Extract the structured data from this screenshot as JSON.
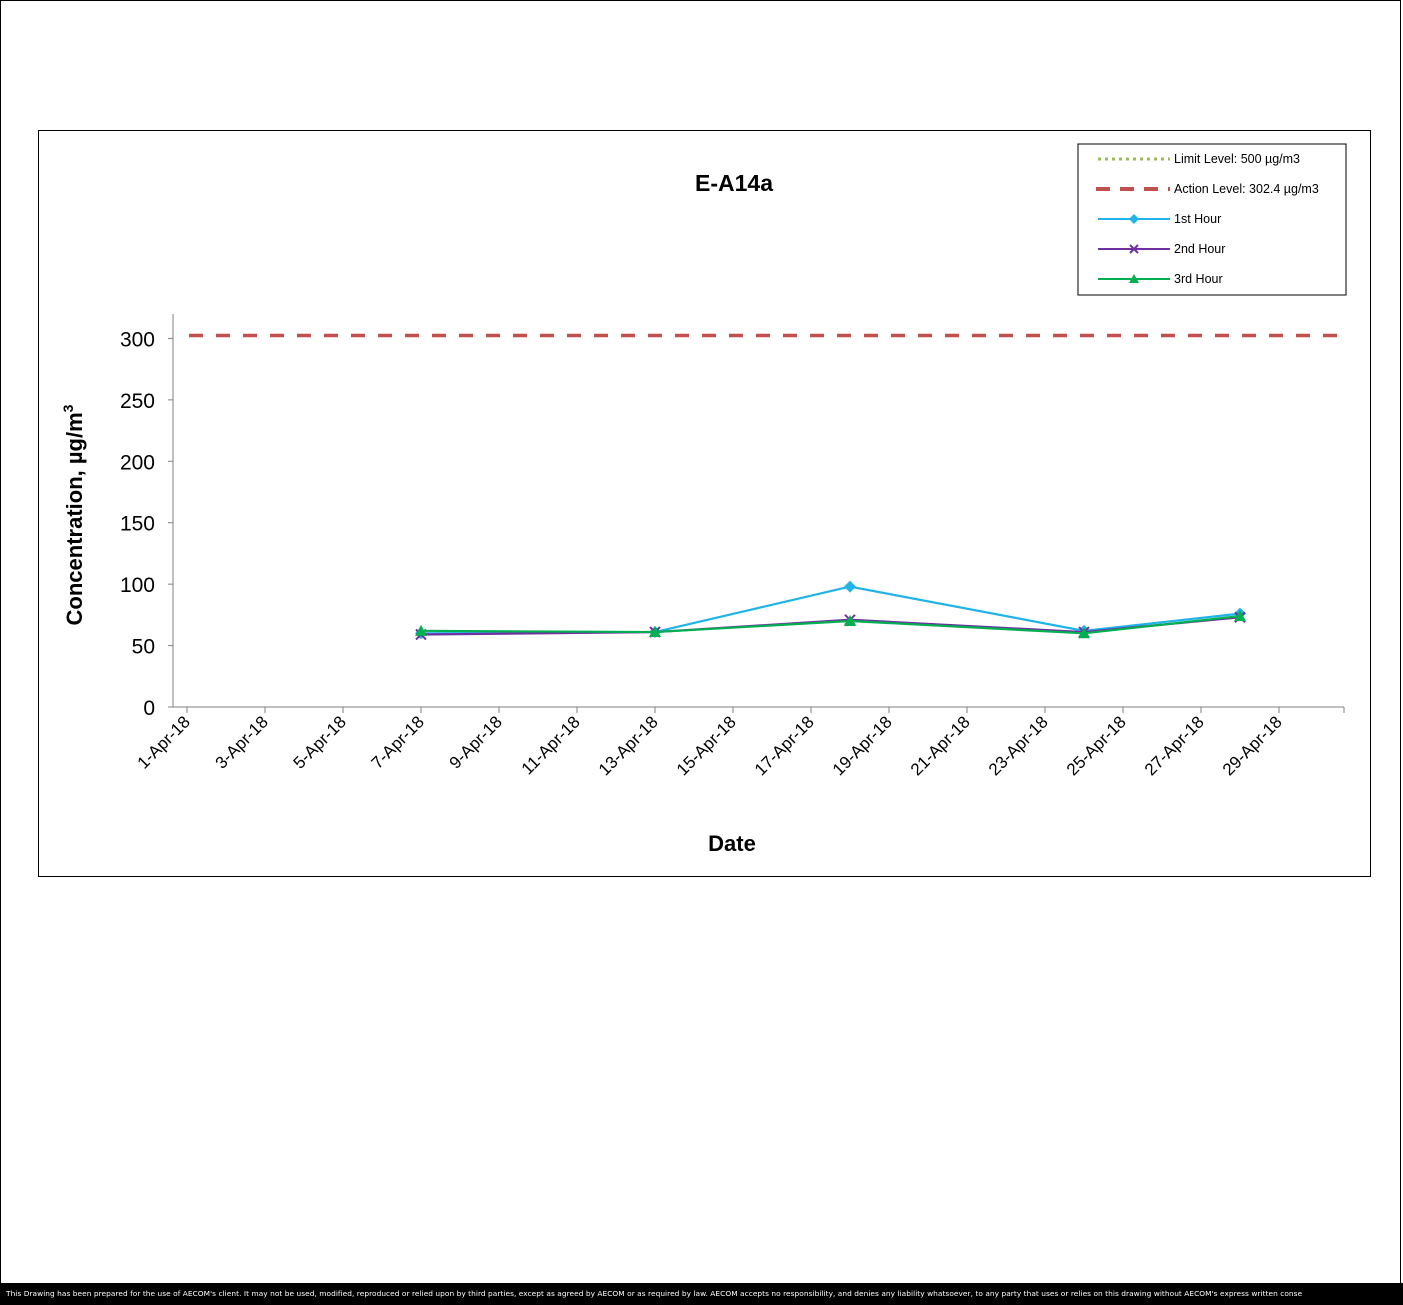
{
  "chart_data": {
    "type": "line",
    "title": "E-A14a",
    "xlabel": "Date",
    "ylabel": "Concentration, µg/m",
    "ylabel_superscript": "3",
    "ylim": [
      0,
      320
    ],
    "yticks": [
      0,
      50,
      100,
      150,
      200,
      250,
      300
    ],
    "xlim": [
      "2018-04-01",
      "2018-04-30"
    ],
    "xticks": [
      "1-Apr-18",
      "3-Apr-18",
      "5-Apr-18",
      "7-Apr-18",
      "9-Apr-18",
      "11-Apr-18",
      "13-Apr-18",
      "15-Apr-18",
      "17-Apr-18",
      "19-Apr-18",
      "21-Apr-18",
      "23-Apr-18",
      "25-Apr-18",
      "27-Apr-18",
      "29-Apr-18"
    ],
    "grid": false,
    "legend_position": "top-right",
    "reference_lines": [
      {
        "name": "Limit Level: 500 µg/m3",
        "value": 500,
        "color": "#9bbb59",
        "style": "dotted"
      },
      {
        "name": "Action Level: 302.4 µg/m3",
        "value": 302.4,
        "color": "#c0504d",
        "style": "dashed"
      }
    ],
    "series": [
      {
        "name": "1st Hour",
        "color": "#1fb3e8",
        "marker": "diamond",
        "points": [
          [
            "2018-04-07",
            60
          ],
          [
            "2018-04-13",
            61
          ],
          [
            "2018-04-18",
            98
          ],
          [
            "2018-04-24",
            62
          ],
          [
            "2018-04-28",
            76
          ]
        ]
      },
      {
        "name": "2nd Hour",
        "color": "#7030a0",
        "marker": "x",
        "points": [
          [
            "2018-04-07",
            59
          ],
          [
            "2018-04-13",
            61
          ],
          [
            "2018-04-18",
            71
          ],
          [
            "2018-04-24",
            61
          ],
          [
            "2018-04-28",
            73
          ]
        ]
      },
      {
        "name": "3rd Hour",
        "color": "#00b050",
        "marker": "triangle",
        "points": [
          [
            "2018-04-07",
            62
          ],
          [
            "2018-04-13",
            61
          ],
          [
            "2018-04-18",
            70
          ],
          [
            "2018-04-24",
            60
          ],
          [
            "2018-04-28",
            74
          ]
        ]
      }
    ]
  },
  "footer": {
    "disclaimer": "This Drawing has been prepared for the use of AECOM's client. It may not be used, modified, reproduced or relied upon by third parties, except as agreed by AECOM or as required by law. AECOM accepts no responsibility, and denies any liability whatsoever, to any party that uses or relies on this drawing without AECOM's express written conse"
  }
}
